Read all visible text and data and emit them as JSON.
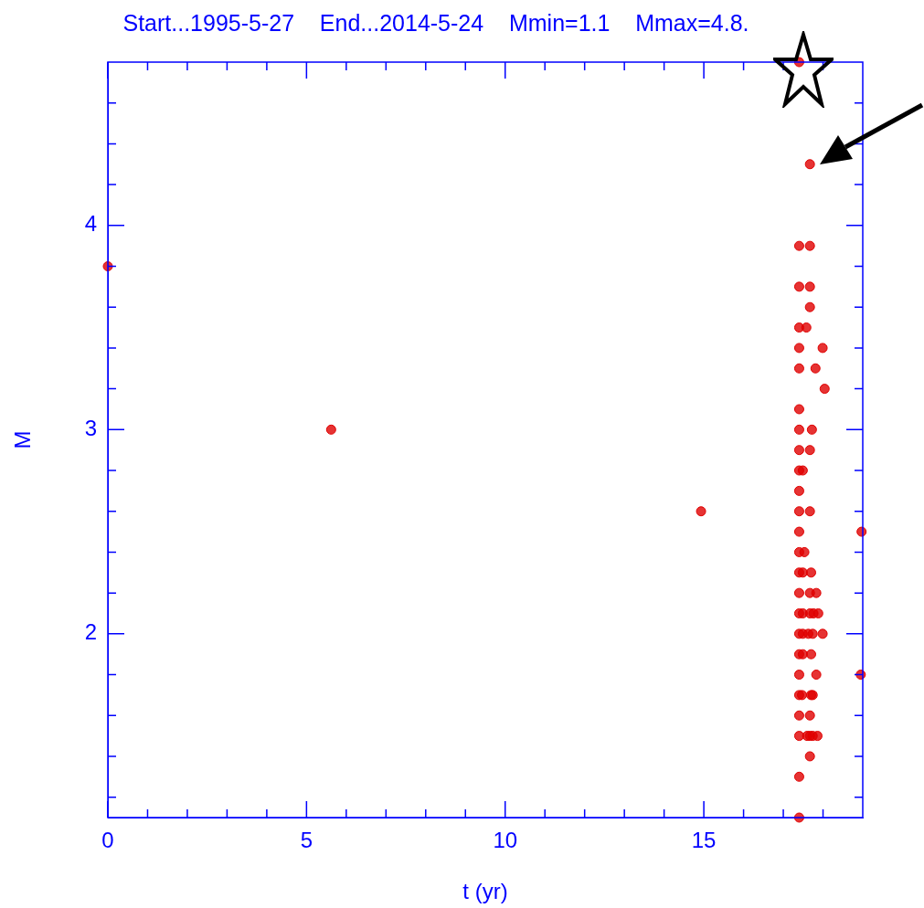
{
  "chart_data": {
    "type": "scatter",
    "title": "Start...1995-5-27    End...2014-5-24    Mmin=1.1    Mmax=4.8.",
    "xlabel": "t (yr)",
    "ylabel": "M",
    "xlim": [
      0,
      19
    ],
    "ylim": [
      1.1,
      4.8
    ],
    "xticks": [
      0,
      {
        "value": 1,
        "label": null
      },
      {
        "value": 2,
        "label": null
      },
      {
        "value": 3,
        "label": null
      },
      {
        "value": 4,
        "label": null
      },
      5,
      {
        "value": 6,
        "label": null
      },
      {
        "value": 7,
        "label": null
      },
      {
        "value": 8,
        "label": null
      },
      {
        "value": 9,
        "label": null
      },
      10,
      {
        "value": 11,
        "label": null
      },
      {
        "value": 12,
        "label": null
      },
      {
        "value": 13,
        "label": null
      },
      {
        "value": 14,
        "label": null
      },
      15,
      {
        "value": 16,
        "label": null
      },
      {
        "value": 17,
        "label": null
      },
      {
        "value": 18,
        "label": null
      }
    ],
    "yticks": [
      {
        "value": 1.2,
        "label": null
      },
      {
        "value": 1.4,
        "label": null
      },
      {
        "value": 1.6,
        "label": null
      },
      {
        "value": 1.8,
        "label": null
      },
      2,
      {
        "value": 2.2,
        "label": null
      },
      {
        "value": 2.4,
        "label": null
      },
      {
        "value": 2.6,
        "label": null
      },
      {
        "value": 2.8,
        "label": null
      },
      3,
      {
        "value": 3.2,
        "label": null
      },
      {
        "value": 3.4,
        "label": null
      },
      {
        "value": 3.6,
        "label": null
      },
      {
        "value": 3.8,
        "label": null
      },
      4,
      {
        "value": 4.2,
        "label": null
      },
      {
        "value": 4.4,
        "label": null
      },
      {
        "value": 4.6,
        "label": null
      }
    ],
    "grid": false,
    "marker": "circle",
    "series": [
      {
        "color": "#e00000",
        "x": [
          0,
          5.62,
          14.93,
          17.4,
          17.67,
          17.4,
          17.67,
          17.4,
          17.67,
          17.67,
          17.4,
          17.58,
          17.4,
          17.99,
          17.4,
          17.81,
          18.04,
          17.4,
          17.4,
          17.72,
          17.4,
          17.67,
          17.4,
          17.49,
          17.4,
          17.4,
          17.67,
          17.4,
          18.97,
          17.4,
          17.53,
          17.4,
          17.49,
          17.7,
          17.4,
          17.67,
          17.83,
          17.4,
          17.49,
          17.67,
          17.76,
          17.88,
          17.4,
          17.49,
          17.63,
          17.74,
          17.99,
          17.4,
          17.49,
          17.7,
          17.4,
          17.83,
          18.95,
          17.4,
          17.47,
          17.7,
          17.74,
          17.4,
          17.67,
          17.4,
          17.6,
          17.67,
          17.74,
          17.86,
          17.67,
          17.4,
          17.4
        ],
        "values": [
          3.8,
          3.0,
          2.6,
          4.8,
          4.3,
          3.9,
          3.9,
          3.7,
          3.7,
          3.6,
          3.5,
          3.5,
          3.4,
          3.4,
          3.3,
          3.3,
          3.2,
          3.1,
          3.0,
          3.0,
          2.9,
          2.9,
          2.8,
          2.8,
          2.7,
          2.6,
          2.6,
          2.5,
          2.5,
          2.4,
          2.4,
          2.3,
          2.3,
          2.3,
          2.2,
          2.2,
          2.2,
          2.1,
          2.1,
          2.1,
          2.1,
          2.1,
          2.0,
          2.0,
          2.0,
          2.0,
          2.0,
          1.9,
          1.9,
          1.9,
          1.8,
          1.8,
          1.8,
          1.7,
          1.7,
          1.7,
          1.7,
          1.6,
          1.6,
          1.5,
          1.5,
          1.5,
          1.5,
          1.5,
          1.4,
          1.3,
          1.1
        ]
      }
    ]
  }
}
